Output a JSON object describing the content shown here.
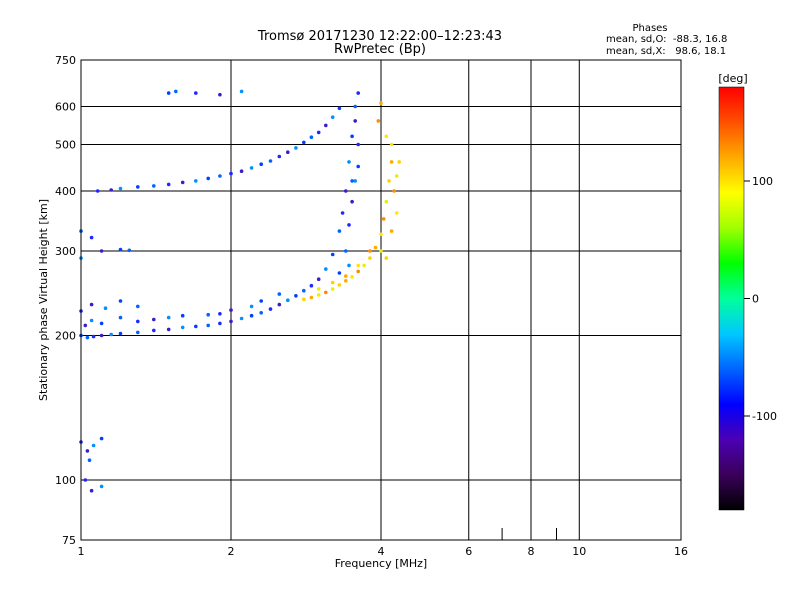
{
  "chart_data": {
    "type": "scatter",
    "title": "Tromsø 20171230 12:22:00–12:23:43",
    "subtitle": "RwPretec (Bp)",
    "xlabel": "Frequency [MHz]",
    "ylabel": "Stationary phase Virtual Height [km]",
    "x_scale": "log",
    "y_scale": "log",
    "xlim": [
      1,
      16
    ],
    "ylim": [
      75,
      750
    ],
    "x_ticks": [
      1,
      2,
      4,
      6,
      8,
      10,
      16
    ],
    "y_ticks": [
      75,
      100,
      200,
      300,
      400,
      500,
      600,
      750
    ],
    "grid": true,
    "legend": {
      "heading": "Phases",
      "o_line": "mean, sd,O:  -88.3, 16.8",
      "x_line": "mean, sd,X:   98.6, 18.1",
      "position": "top-right"
    },
    "colorbar": {
      "label": "[deg]",
      "ticks": [
        100,
        0,
        -100
      ],
      "range": [
        -180,
        180
      ],
      "colors": [
        "#000000",
        "#3a005a",
        "#4b00b4",
        "#0000ff",
        "#0064ff",
        "#00c8ff",
        "#00ff9b",
        "#00ff00",
        "#a0ff00",
        "#ffff00",
        "#ffaa00",
        "#ff5000",
        "#ff0000"
      ]
    },
    "series": [
      {
        "description_key": "O",
        "points": [
          [
            1.0,
            200
          ],
          [
            1.03,
            198
          ],
          [
            1.06,
            199
          ],
          [
            1.1,
            200
          ],
          [
            1.15,
            201
          ],
          [
            1.2,
            202
          ],
          [
            1.3,
            203
          ],
          [
            1.4,
            205
          ],
          [
            1.5,
            206
          ],
          [
            1.6,
            208
          ],
          [
            1.7,
            209
          ],
          [
            1.8,
            210
          ],
          [
            1.9,
            212
          ],
          [
            2.0,
            214
          ],
          [
            2.1,
            217
          ],
          [
            2.2,
            220
          ],
          [
            2.3,
            223
          ],
          [
            2.4,
            227
          ],
          [
            2.5,
            232
          ],
          [
            2.6,
            237
          ],
          [
            2.7,
            242
          ],
          [
            2.8,
            248
          ],
          [
            2.9,
            254
          ],
          [
            3.0,
            262
          ],
          [
            3.1,
            275
          ],
          [
            3.2,
            295
          ],
          [
            3.3,
            330
          ],
          [
            3.35,
            360
          ],
          [
            3.4,
            400
          ],
          [
            3.45,
            460
          ],
          [
            3.5,
            520
          ],
          [
            3.55,
            600
          ],
          [
            3.6,
            640
          ],
          [
            1.02,
            210
          ],
          [
            1.05,
            215
          ],
          [
            1.1,
            212
          ],
          [
            1.2,
            218
          ],
          [
            1.3,
            214
          ],
          [
            1.4,
            216
          ],
          [
            1.5,
            218
          ],
          [
            1.6,
            220
          ],
          [
            1.8,
            221
          ],
          [
            1.9,
            222
          ],
          [
            2.0,
            226
          ],
          [
            2.2,
            230
          ],
          [
            2.3,
            236
          ],
          [
            2.5,
            244
          ],
          [
            1.0,
            225
          ],
          [
            1.05,
            232
          ],
          [
            1.12,
            228
          ],
          [
            1.2,
            236
          ],
          [
            1.3,
            230
          ],
          [
            1.08,
            400
          ],
          [
            1.15,
            402
          ],
          [
            1.2,
            405
          ],
          [
            1.3,
            408
          ],
          [
            1.4,
            410
          ],
          [
            1.5,
            413
          ],
          [
            1.6,
            417
          ],
          [
            1.7,
            420
          ],
          [
            1.8,
            425
          ],
          [
            1.9,
            430
          ],
          [
            2.0,
            435
          ],
          [
            2.1,
            440
          ],
          [
            2.2,
            447
          ],
          [
            2.3,
            455
          ],
          [
            2.4,
            462
          ],
          [
            2.5,
            472
          ],
          [
            2.6,
            482
          ],
          [
            2.7,
            492
          ],
          [
            2.8,
            505
          ],
          [
            2.9,
            518
          ],
          [
            3.0,
            530
          ],
          [
            3.1,
            548
          ],
          [
            3.2,
            570
          ],
          [
            3.3,
            595
          ],
          [
            3.4,
            300
          ],
          [
            3.45,
            340
          ],
          [
            3.5,
            380
          ],
          [
            3.55,
            420
          ],
          [
            3.6,
            450
          ],
          [
            3.5,
            420
          ],
          [
            3.6,
            500
          ],
          [
            3.55,
            560
          ],
          [
            3.45,
            280
          ],
          [
            3.3,
            270
          ],
          [
            1.0,
            330
          ],
          [
            1.05,
            320
          ],
          [
            1.1,
            300
          ],
          [
            1.0,
            290
          ],
          [
            1.2,
            302
          ],
          [
            1.25,
            301
          ],
          [
            1.0,
            120
          ],
          [
            1.03,
            115
          ],
          [
            1.06,
            118
          ],
          [
            1.1,
            122
          ],
          [
            1.04,
            110
          ],
          [
            1.02,
            100
          ],
          [
            1.05,
            95
          ],
          [
            1.1,
            97
          ],
          [
            1.5,
            640
          ],
          [
            1.55,
            645
          ],
          [
            1.7,
            640
          ],
          [
            1.9,
            635
          ],
          [
            2.1,
            645
          ]
        ]
      },
      {
        "description_key": "X",
        "points": [
          [
            2.8,
            238
          ],
          [
            2.9,
            240
          ],
          [
            3.0,
            243
          ],
          [
            3.1,
            246
          ],
          [
            3.2,
            250
          ],
          [
            3.3,
            255
          ],
          [
            3.4,
            260
          ],
          [
            3.5,
            265
          ],
          [
            3.6,
            272
          ],
          [
            3.7,
            280
          ],
          [
            3.8,
            290
          ],
          [
            3.9,
            305
          ],
          [
            4.0,
            325
          ],
          [
            4.05,
            350
          ],
          [
            4.1,
            380
          ],
          [
            4.15,
            420
          ],
          [
            4.2,
            460
          ],
          [
            4.1,
            520
          ],
          [
            3.95,
            560
          ],
          [
            3.0,
            250
          ],
          [
            3.2,
            258
          ],
          [
            3.4,
            266
          ],
          [
            3.6,
            280
          ],
          [
            3.8,
            300
          ],
          [
            4.0,
            300
          ],
          [
            4.1,
            290
          ],
          [
            4.2,
            330
          ],
          [
            4.3,
            360
          ],
          [
            4.25,
            400
          ],
          [
            4.3,
            430
          ],
          [
            4.35,
            460
          ],
          [
            4.0,
            610
          ],
          [
            4.2,
            500
          ]
        ]
      }
    ]
  }
}
